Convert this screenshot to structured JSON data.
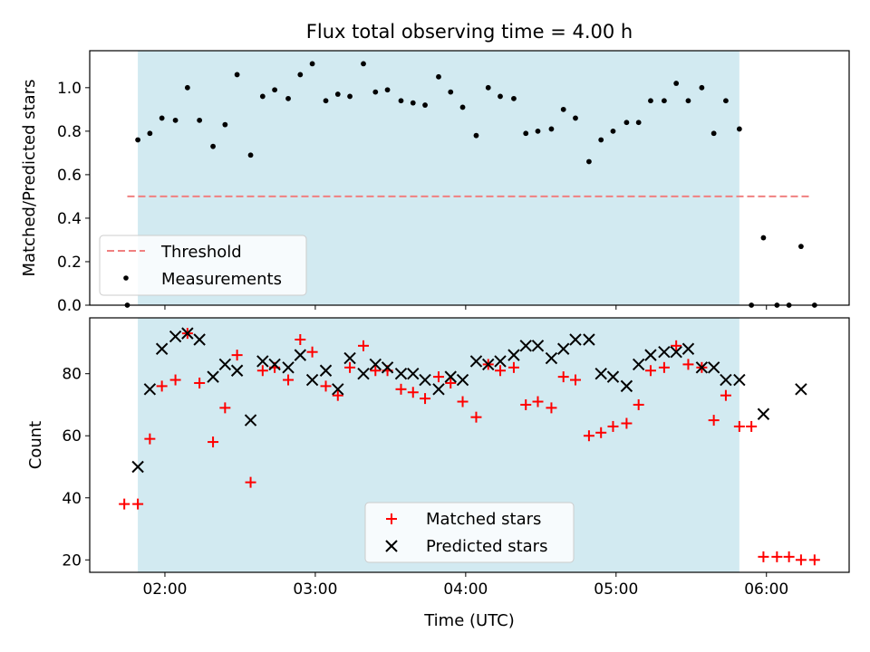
{
  "chart_data": [
    {
      "type": "scatter",
      "title": "Flux total observing time = 4.00 h",
      "xlabel": "",
      "ylabel": "Matched/Predicted stars",
      "x_unit": "hours UTC",
      "xlim": [
        1.5,
        6.55
      ],
      "ylim": [
        0,
        1.17
      ],
      "xticks": [
        2,
        3,
        4,
        5,
        6
      ],
      "yticks": [
        0.0,
        0.2,
        0.4,
        0.6,
        0.8,
        1.0
      ],
      "ytick_labels": [
        "0.0",
        "0.2",
        "0.4",
        "0.6",
        "0.8",
        "1.0"
      ],
      "shaded_span": [
        1.82,
        5.82
      ],
      "shade_color": "#add8e6",
      "threshold": {
        "name": "Threshold",
        "value": 0.5,
        "x_range": [
          1.75,
          6.3
        ],
        "color": "#f08080"
      },
      "legend": {
        "placement": "lower-left",
        "entries": [
          "Threshold",
          "Measurements"
        ]
      },
      "series": [
        {
          "name": "Measurements",
          "marker": "dot",
          "color": "#000000",
          "x": [
            1.75,
            1.82,
            1.9,
            1.98,
            2.07,
            2.15,
            2.23,
            2.32,
            2.4,
            2.48,
            2.57,
            2.65,
            2.73,
            2.82,
            2.9,
            2.98,
            3.07,
            3.15,
            3.23,
            3.32,
            3.4,
            3.48,
            3.57,
            3.65,
            3.73,
            3.82,
            3.9,
            3.98,
            4.07,
            4.15,
            4.23,
            4.32,
            4.4,
            4.48,
            4.57,
            4.65,
            4.73,
            4.82,
            4.9,
            4.98,
            5.07,
            5.15,
            5.23,
            5.32,
            5.4,
            5.48,
            5.57,
            5.65,
            5.73,
            5.82,
            5.9,
            5.98,
            6.07,
            6.15,
            6.23,
            6.32
          ],
          "y": [
            0.0,
            0.76,
            0.79,
            0.86,
            0.85,
            1.0,
            0.85,
            0.73,
            0.83,
            1.06,
            0.69,
            0.96,
            0.99,
            0.95,
            1.06,
            1.11,
            0.94,
            0.97,
            0.96,
            1.11,
            0.98,
            0.99,
            0.94,
            0.93,
            0.92,
            1.05,
            0.98,
            0.91,
            0.78,
            1.0,
            0.96,
            0.95,
            0.79,
            0.8,
            0.81,
            0.9,
            0.86,
            0.66,
            0.76,
            0.8,
            0.84,
            0.84,
            0.94,
            0.94,
            1.02,
            0.94,
            1.0,
            0.79,
            0.94,
            0.81,
            0.0,
            0.31,
            0.0,
            0.0,
            0.27,
            0.0
          ]
        }
      ]
    },
    {
      "type": "scatter",
      "title": "",
      "xlabel": "Time (UTC)",
      "ylabel": "Count",
      "x_unit": "hours UTC",
      "xlim": [
        1.5,
        6.55
      ],
      "ylim": [
        16,
        98
      ],
      "xticks": [
        2,
        3,
        4,
        5,
        6
      ],
      "xtick_labels": [
        "02:00",
        "03:00",
        "04:00",
        "05:00",
        "06:00"
      ],
      "yticks": [
        20,
        40,
        60,
        80
      ],
      "ytick_labels": [
        "20",
        "40",
        "60",
        "80"
      ],
      "shaded_span": [
        1.82,
        5.82
      ],
      "shade_color": "#add8e6",
      "legend": {
        "placement": "lower-center",
        "entries": [
          "Matched stars",
          "Predicted stars"
        ]
      },
      "series": [
        {
          "name": "Matched stars",
          "marker": "plus",
          "color": "#ff0000",
          "x": [
            1.73,
            1.82,
            1.9,
            1.98,
            2.07,
            2.15,
            2.23,
            2.32,
            2.4,
            2.48,
            2.57,
            2.65,
            2.73,
            2.82,
            2.9,
            2.98,
            3.07,
            3.15,
            3.23,
            3.32,
            3.4,
            3.48,
            3.57,
            3.65,
            3.73,
            3.82,
            3.9,
            3.98,
            4.07,
            4.15,
            4.23,
            4.32,
            4.4,
            4.48,
            4.57,
            4.65,
            4.73,
            4.82,
            4.9,
            4.98,
            5.07,
            5.15,
            5.23,
            5.32,
            5.4,
            5.48,
            5.57,
            5.65,
            5.73,
            5.82,
            5.9,
            5.98,
            6.07,
            6.15,
            6.23,
            6.32
          ],
          "y": [
            38,
            38,
            59,
            76,
            78,
            93,
            77,
            58,
            69,
            86,
            45,
            81,
            82,
            78,
            91,
            87,
            76,
            73,
            82,
            89,
            81,
            81,
            75,
            74,
            72,
            79,
            77,
            71,
            66,
            83,
            81,
            82,
            70,
            71,
            69,
            79,
            78,
            60,
            61,
            63,
            64,
            70,
            81,
            82,
            89,
            83,
            82,
            65,
            73,
            63,
            63,
            21,
            21,
            21,
            20,
            20
          ]
        },
        {
          "name": "Predicted stars",
          "marker": "x",
          "color": "#000000",
          "x": [
            1.82,
            1.9,
            1.98,
            2.07,
            2.15,
            2.23,
            2.32,
            2.4,
            2.48,
            2.57,
            2.65,
            2.73,
            2.82,
            2.9,
            2.98,
            3.07,
            3.15,
            3.23,
            3.32,
            3.4,
            3.48,
            3.57,
            3.65,
            3.73,
            3.82,
            3.9,
            3.98,
            4.07,
            4.15,
            4.23,
            4.32,
            4.4,
            4.48,
            4.57,
            4.65,
            4.73,
            4.82,
            4.9,
            4.98,
            5.07,
            5.15,
            5.23,
            5.32,
            5.4,
            5.48,
            5.57,
            5.65,
            5.73,
            5.82,
            5.98,
            6.23
          ],
          "y": [
            50,
            75,
            88,
            92,
            93,
            91,
            79,
            83,
            81,
            65,
            84,
            83,
            82,
            86,
            78,
            81,
            75,
            85,
            80,
            83,
            82,
            80,
            80,
            78,
            75,
            79,
            78,
            84,
            83,
            84,
            86,
            89,
            89,
            85,
            88,
            91,
            91,
            80,
            79,
            76,
            83,
            86,
            87,
            87,
            88,
            82,
            82,
            78,
            78,
            67,
            75
          ]
        }
      ]
    }
  ]
}
